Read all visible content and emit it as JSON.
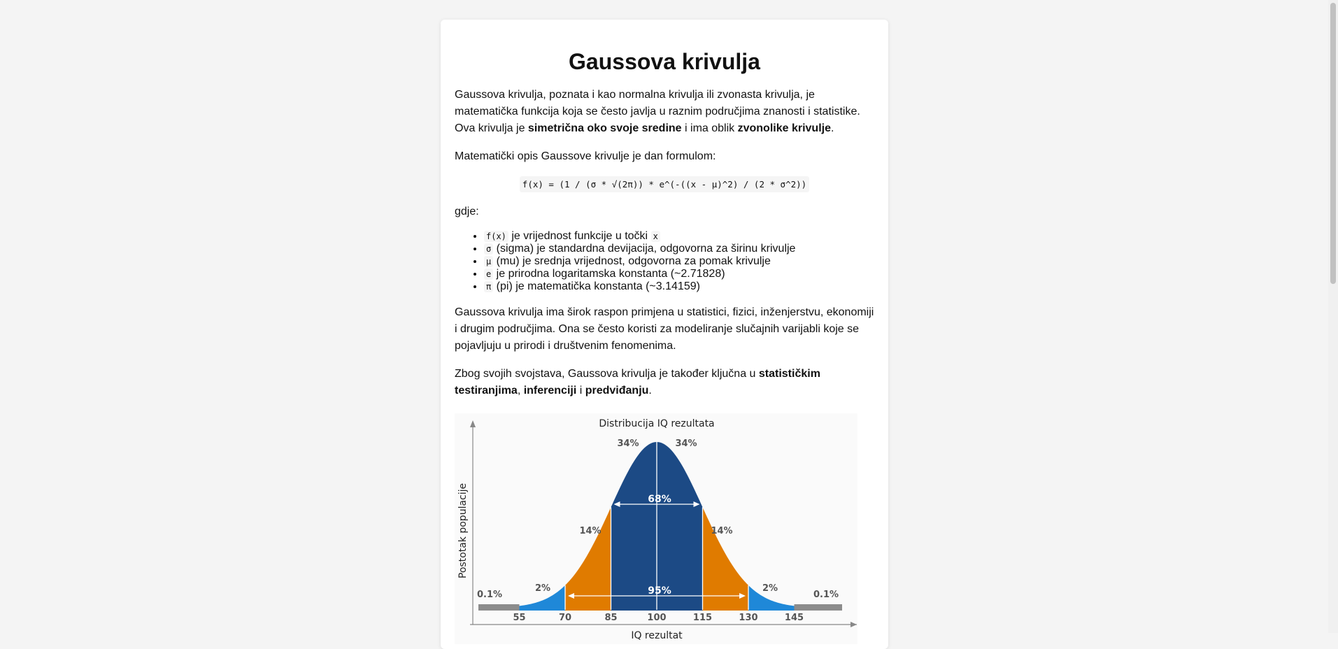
{
  "article": {
    "title": "Gaussova krivulja",
    "intro": {
      "part1": "Gaussova krivulja, poznata i kao normalna krivulja ili zvonasta krivulja, je matematička funkcija koja se često javlja u raznim područjima znanosti i statistike. Ova krivulja je ",
      "bold1": "simetrična oko svoje sredine",
      "part2": " i ima oblik ",
      "bold2": "zvonolike krivulje",
      "part3": "."
    },
    "formula_intro": "Matematički opis Gaussove krivulje je dan formulom:",
    "formula": "f(x) = (1 / (σ * √(2π)) * e^(-((x - μ)^2) / (2 * σ^2))",
    "gdje": "gdje:",
    "definitions": [
      {
        "code": "f(x)",
        "text": " je vrijednost funkcije u točki ",
        "code2": "x"
      },
      {
        "code": "σ",
        "text": " (sigma) je standardna devijacija, odgovorna za širinu krivulje"
      },
      {
        "code": "μ",
        "text": " (mu) je srednja vrijednost, odgovorna za pomak krivulje"
      },
      {
        "code": "e",
        "text": " je prirodna logaritamska konstanta (~2.71828)"
      },
      {
        "code": "π",
        "text": " (pi) je matematička konstanta (~3.14159)"
      }
    ],
    "applications": "Gaussova krivulja ima širok raspon primjena u statistici, fizici, inženjerstvu, ekonomiji i drugim područjima. Ona se često koristi za modeliranje slučajnih varijabli koje se pojavljuju u prirodi i društvenim fenomenima.",
    "conclusion": {
      "part1": "Zbog svojih svojstava, Gaussova krivulja je također ključna u ",
      "bold1": "statističkim testiranjima",
      "sep1": ", ",
      "bold2": "inferenciji",
      "sep2": " i ",
      "bold3": "predviđanju",
      "end": "."
    }
  },
  "chart_data": {
    "type": "area",
    "title": "Distribucija IQ rezultata",
    "xlabel": "IQ rezultat",
    "ylabel": "Postotak populacije",
    "mean": 100,
    "sd": 15,
    "x_ticks": [
      55,
      70,
      85,
      100,
      115,
      130,
      145
    ],
    "regions": [
      {
        "from": 40,
        "to": 55,
        "label": "0.1%",
        "color": "#8c8c8c"
      },
      {
        "from": 55,
        "to": 70,
        "label": "2%",
        "color": "#1f88d8"
      },
      {
        "from": 70,
        "to": 85,
        "label": "14%",
        "color": "#e07b00"
      },
      {
        "from": 85,
        "to": 100,
        "label": "34%",
        "color": "#1c4a85"
      },
      {
        "from": 100,
        "to": 115,
        "label": "34%",
        "color": "#1c4a85"
      },
      {
        "from": 115,
        "to": 130,
        "label": "14%",
        "color": "#e07b00"
      },
      {
        "from": 130,
        "to": 145,
        "label": "2%",
        "color": "#1f88d8"
      },
      {
        "from": 145,
        "to": 160,
        "label": "0.1%",
        "color": "#8c8c8c"
      }
    ],
    "intervals": [
      {
        "from": 85,
        "to": 115,
        "label": "68%"
      },
      {
        "from": 70,
        "to": 130,
        "label": "95%"
      }
    ]
  }
}
